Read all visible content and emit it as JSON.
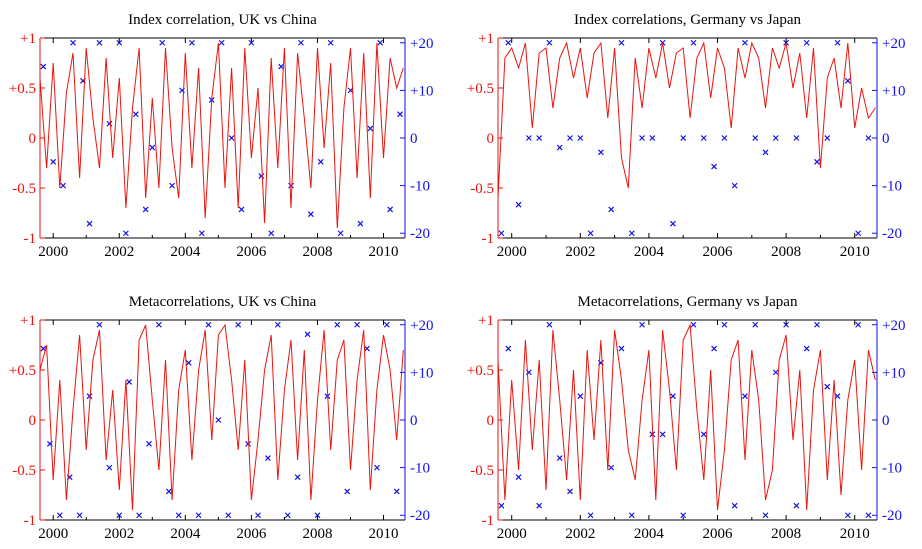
{
  "colors": {
    "corr": "#e8150f",
    "lag": "#1212e6",
    "axis": "#000000"
  },
  "chart_data": [
    {
      "type": "line",
      "title": "Index correlation, UK vs China",
      "x_ticks": [
        "2000",
        "2002",
        "2004",
        "2006",
        "2008",
        "2010"
      ],
      "xlim": [
        1999.6,
        2010.65
      ],
      "left_axis": {
        "ticks": [
          "-1",
          "-0.5",
          "0",
          "+0.5",
          "+1"
        ],
        "ylim": [
          -1,
          1
        ],
        "color": "red"
      },
      "right_axis": {
        "ticks": [
          "-20",
          "-10",
          "0",
          "+10",
          "+20"
        ],
        "ylim": [
          -21,
          21
        ],
        "color": "blue"
      },
      "series": [
        {
          "type": "line",
          "color": "red",
          "x": [
            1999.6,
            1999.8,
            2000.0,
            2000.2,
            2000.4,
            2000.6,
            2000.8,
            2001.0,
            2001.2,
            2001.4,
            2001.6,
            2001.8,
            2002.0,
            2002.2,
            2002.4,
            2002.6,
            2002.8,
            2003.0,
            2003.2,
            2003.4,
            2003.6,
            2003.8,
            2004.0,
            2004.2,
            2004.4,
            2004.6,
            2004.8,
            2005.0,
            2005.2,
            2005.4,
            2005.6,
            2005.8,
            2006.0,
            2006.2,
            2006.4,
            2006.6,
            2006.8,
            2007.0,
            2007.2,
            2007.4,
            2007.6,
            2007.8,
            2008.0,
            2008.2,
            2008.4,
            2008.6,
            2008.8,
            2009.0,
            2009.2,
            2009.4,
            2009.6,
            2009.8,
            2010.0,
            2010.2,
            2010.4,
            2010.6
          ],
          "y": [
            0.6,
            -0.3,
            0.75,
            -0.5,
            0.45,
            0.85,
            -0.4,
            0.9,
            0.2,
            -0.3,
            0.8,
            -0.2,
            0.6,
            -0.7,
            0.3,
            0.9,
            -0.6,
            0.4,
            -0.5,
            0.9,
            -0.1,
            -0.6,
            0.85,
            -0.3,
            0.7,
            -0.8,
            0.4,
            0.95,
            -0.5,
            0.7,
            -0.7,
            0.9,
            -0.2,
            0.5,
            -0.85,
            0.8,
            -0.3,
            0.9,
            -0.7,
            0.85,
            0.2,
            -0.5,
            0.9,
            -0.1,
            0.75,
            -0.9,
            0.3,
            0.9,
            -0.4,
            0.85,
            -0.6,
            0.95,
            -0.2,
            0.8,
            0.5,
            0.7
          ]
        },
        {
          "type": "scatter",
          "color": "blue",
          "marker": "x",
          "x": [
            1999.7,
            2000.0,
            2000.3,
            2000.6,
            2000.9,
            2001.1,
            2001.4,
            2001.7,
            2002.0,
            2002.2,
            2002.5,
            2002.8,
            2003.0,
            2003.3,
            2003.6,
            2003.9,
            2004.2,
            2004.5,
            2004.8,
            2005.1,
            2005.4,
            2005.7,
            2006.0,
            2006.3,
            2006.6,
            2006.9,
            2007.2,
            2007.5,
            2007.8,
            2008.1,
            2008.4,
            2008.7,
            2009.0,
            2009.3,
            2009.6,
            2009.9,
            2010.2,
            2010.5
          ],
          "y": [
            15,
            -5,
            -10,
            20,
            12,
            -18,
            20,
            3,
            20,
            -20,
            5,
            -15,
            -2,
            20,
            -10,
            10,
            20,
            -20,
            8,
            20,
            0,
            -15,
            20,
            -8,
            -20,
            15,
            -10,
            20,
            -16,
            -5,
            20,
            -20,
            10,
            -18,
            2,
            20,
            -15,
            5
          ]
        }
      ]
    },
    {
      "type": "line",
      "title": "Index correlations, Germany vs Japan",
      "x_ticks": [
        "2000",
        "2002",
        "2004",
        "2006",
        "2008",
        "2010"
      ],
      "xlim": [
        1999.6,
        2010.65
      ],
      "left_axis": {
        "ticks": [
          "-1",
          "-0.5",
          "0",
          "+0.5",
          "+1"
        ],
        "ylim": [
          -1,
          1
        ],
        "color": "red"
      },
      "right_axis": {
        "ticks": [
          "-20",
          "-10",
          "0",
          "+10",
          "+20"
        ],
        "ylim": [
          -21,
          21
        ],
        "color": "blue"
      },
      "series": [
        {
          "type": "line",
          "color": "red",
          "x": [
            1999.6,
            1999.8,
            2000.0,
            2000.2,
            2000.4,
            2000.6,
            2000.8,
            2001.0,
            2001.2,
            2001.4,
            2001.6,
            2001.8,
            2002.0,
            2002.2,
            2002.4,
            2002.6,
            2002.8,
            2003.0,
            2003.2,
            2003.4,
            2003.6,
            2003.8,
            2004.0,
            2004.2,
            2004.4,
            2004.6,
            2004.8,
            2005.0,
            2005.2,
            2005.4,
            2005.6,
            2005.8,
            2006.0,
            2006.2,
            2006.4,
            2006.6,
            2006.8,
            2007.0,
            2007.2,
            2007.4,
            2007.6,
            2007.8,
            2008.0,
            2008.2,
            2008.4,
            2008.6,
            2008.8,
            2009.0,
            2009.2,
            2009.4,
            2009.6,
            2009.8,
            2010.0,
            2010.2,
            2010.4,
            2010.6
          ],
          "y": [
            -0.6,
            0.8,
            0.9,
            0.7,
            0.95,
            0.1,
            0.85,
            0.9,
            0.3,
            0.8,
            0.95,
            0.6,
            0.9,
            0.4,
            0.85,
            0.95,
            0.2,
            0.9,
            -0.2,
            -0.5,
            0.8,
            0.3,
            0.9,
            0.6,
            0.95,
            0.5,
            0.85,
            0.9,
            0.2,
            0.8,
            0.95,
            0.4,
            0.9,
            0.7,
            0.1,
            0.9,
            0.6,
            0.95,
            0.8,
            0.3,
            0.9,
            0.7,
            0.95,
            0.5,
            0.85,
            0.2,
            0.9,
            -0.3,
            0.6,
            0.8,
            0.3,
            0.95,
            0.1,
            0.5,
            0.2,
            0.3
          ]
        },
        {
          "type": "scatter",
          "color": "blue",
          "marker": "x",
          "x": [
            1999.7,
            1999.9,
            2000.2,
            2000.5,
            2000.8,
            2001.1,
            2001.4,
            2001.7,
            2002.0,
            2002.3,
            2002.6,
            2002.9,
            2003.2,
            2003.5,
            2003.8,
            2004.1,
            2004.4,
            2004.7,
            2005.0,
            2005.3,
            2005.6,
            2005.9,
            2006.2,
            2006.5,
            2006.8,
            2007.1,
            2007.4,
            2007.7,
            2008.0,
            2008.3,
            2008.6,
            2008.9,
            2009.2,
            2009.5,
            2009.8,
            2010.1,
            2010.4
          ],
          "y": [
            -20,
            20,
            -14,
            0,
            0,
            20,
            -2,
            0,
            0,
            -20,
            -3,
            -15,
            20,
            -20,
            0,
            0,
            20,
            -18,
            0,
            20,
            0,
            -6,
            0,
            -10,
            20,
            0,
            -3,
            0,
            20,
            0,
            20,
            -5,
            0,
            20,
            12,
            -20,
            0
          ]
        }
      ]
    },
    {
      "type": "line",
      "title": "Metacorrelations, UK vs China",
      "x_ticks": [
        "2000",
        "2002",
        "2004",
        "2006",
        "2008",
        "2010"
      ],
      "xlim": [
        1999.6,
        2010.65
      ],
      "left_axis": {
        "ticks": [
          "-1",
          "-0.5",
          "0",
          "+0.5",
          "+1"
        ],
        "ylim": [
          -1,
          1
        ],
        "color": "red"
      },
      "right_axis": {
        "ticks": [
          "-20",
          "-10",
          "0",
          "+10",
          "+20"
        ],
        "ylim": [
          -21,
          21
        ],
        "color": "blue"
      },
      "series": [
        {
          "type": "line",
          "color": "red",
          "x": [
            1999.6,
            1999.8,
            2000.0,
            2000.2,
            2000.4,
            2000.6,
            2000.8,
            2001.0,
            2001.2,
            2001.4,
            2001.6,
            2001.8,
            2002.0,
            2002.2,
            2002.4,
            2002.6,
            2002.8,
            2003.0,
            2003.2,
            2003.4,
            2003.6,
            2003.8,
            2004.0,
            2004.2,
            2004.4,
            2004.6,
            2004.8,
            2005.0,
            2005.2,
            2005.4,
            2005.6,
            2005.8,
            2006.0,
            2006.2,
            2006.4,
            2006.6,
            2006.8,
            2007.0,
            2007.2,
            2007.4,
            2007.6,
            2007.8,
            2008.0,
            2008.2,
            2008.4,
            2008.6,
            2008.8,
            2009.0,
            2009.2,
            2009.4,
            2009.6,
            2009.8,
            2010.0,
            2010.2,
            2010.4,
            2010.6
          ],
          "y": [
            0.5,
            0.75,
            -0.6,
            0.4,
            -0.8,
            0.1,
            0.85,
            -0.3,
            0.6,
            0.9,
            -0.4,
            0.3,
            -0.7,
            0.4,
            -0.9,
            0.8,
            0.95,
            0.2,
            -0.5,
            0.6,
            -0.8,
            0.3,
            0.7,
            -0.4,
            0.5,
            0.9,
            -0.2,
            0.85,
            0.95,
            0.4,
            -0.3,
            0.6,
            -0.8,
            -0.2,
            0.5,
            0.85,
            -0.6,
            0.3,
            0.8,
            -0.4,
            0.7,
            -0.8,
            0.2,
            0.9,
            -0.3,
            0.6,
            0.8,
            -0.5,
            0.4,
            0.9,
            -0.7,
            0.3,
            0.85,
            0.5,
            -0.2,
            0.7
          ]
        },
        {
          "type": "scatter",
          "color": "blue",
          "marker": "x",
          "x": [
            1999.7,
            1999.9,
            2000.2,
            2000.5,
            2000.8,
            2001.1,
            2001.4,
            2001.7,
            2002.0,
            2002.3,
            2002.6,
            2002.9,
            2003.2,
            2003.5,
            2003.8,
            2004.1,
            2004.4,
            2004.7,
            2005.0,
            2005.3,
            2005.6,
            2005.9,
            2006.2,
            2006.5,
            2006.8,
            2007.1,
            2007.4,
            2007.7,
            2008.0,
            2008.3,
            2008.6,
            2008.9,
            2009.2,
            2009.5,
            2009.8,
            2010.1,
            2010.4
          ],
          "y": [
            15,
            -5,
            -20,
            -12,
            -20,
            5,
            20,
            -10,
            -20,
            8,
            -20,
            -5,
            20,
            -15,
            -20,
            12,
            -20,
            20,
            0,
            -20,
            20,
            -5,
            -20,
            -8,
            20,
            -20,
            -12,
            18,
            -20,
            5,
            20,
            -15,
            20,
            15,
            -10,
            20,
            -15
          ]
        }
      ]
    },
    {
      "type": "line",
      "title": "Metacorrelations, Germany vs Japan",
      "x_ticks": [
        "2000",
        "2002",
        "2004",
        "2006",
        "2008",
        "2010"
      ],
      "xlim": [
        1999.6,
        2010.65
      ],
      "left_axis": {
        "ticks": [
          "-1",
          "-0.5",
          "0",
          "+0.5",
          "+1"
        ],
        "ylim": [
          -1,
          1
        ],
        "color": "red"
      },
      "right_axis": {
        "ticks": [
          "-20",
          "-10",
          "0",
          "+10",
          "+20"
        ],
        "ylim": [
          -21,
          21
        ],
        "color": "blue"
      },
      "series": [
        {
          "type": "line",
          "color": "red",
          "x": [
            1999.6,
            1999.8,
            2000.0,
            2000.2,
            2000.4,
            2000.6,
            2000.8,
            2001.0,
            2001.2,
            2001.4,
            2001.6,
            2001.8,
            2002.0,
            2002.2,
            2002.4,
            2002.6,
            2002.8,
            2003.0,
            2003.2,
            2003.4,
            2003.6,
            2003.8,
            2004.0,
            2004.2,
            2004.4,
            2004.6,
            2004.8,
            2005.0,
            2005.2,
            2005.4,
            2005.6,
            2005.8,
            2006.0,
            2006.2,
            2006.4,
            2006.6,
            2006.8,
            2007.0,
            2007.2,
            2007.4,
            2007.6,
            2007.8,
            2008.0,
            2008.2,
            2008.4,
            2008.6,
            2008.8,
            2009.0,
            2009.2,
            2009.4,
            2009.6,
            2009.8,
            2010.0,
            2010.2,
            2010.4,
            2010.6
          ],
          "y": [
            0.6,
            -0.8,
            0.4,
            -0.5,
            0.8,
            -0.3,
            0.6,
            -0.7,
            0.9,
            0.2,
            -0.6,
            0.5,
            -0.8,
            0.7,
            -0.2,
            0.8,
            -0.5,
            0.9,
            0.4,
            -0.3,
            -0.6,
            0.2,
            0.7,
            -0.8,
            0.9,
            0.3,
            -0.5,
            0.8,
            0.95,
            0.1,
            -0.6,
            0.5,
            -0.9,
            -0.3,
            0.6,
            0.8,
            -0.4,
            0.7,
            0.2,
            -0.8,
            -0.5,
            0.6,
            0.85,
            -0.2,
            0.5,
            -0.9,
            0.3,
            0.7,
            -0.6,
            0.4,
            -0.75,
            0.2,
            0.6,
            -0.5,
            0.7,
            0.4
          ]
        },
        {
          "type": "scatter",
          "color": "blue",
          "marker": "x",
          "x": [
            1999.7,
            1999.9,
            2000.2,
            2000.5,
            2000.8,
            2001.1,
            2001.4,
            2001.7,
            2002.0,
            2002.3,
            2002.6,
            2002.9,
            2003.2,
            2003.5,
            2003.8,
            2004.1,
            2004.4,
            2004.7,
            2005.0,
            2005.3,
            2005.6,
            2005.9,
            2006.2,
            2006.5,
            2006.8,
            2007.1,
            2007.4,
            2007.7,
            2008.0,
            2008.3,
            2008.6,
            2008.9,
            2009.2,
            2009.5,
            2009.8,
            2010.1,
            2010.4
          ],
          "y": [
            -18,
            15,
            -12,
            10,
            -18,
            20,
            -8,
            -15,
            5,
            -20,
            12,
            -10,
            15,
            -20,
            20,
            -3,
            -3,
            5,
            -20,
            20,
            -3,
            15,
            20,
            -18,
            5,
            20,
            -20,
            10,
            20,
            -18,
            15,
            20,
            7,
            5,
            -20,
            20,
            -20
          ]
        }
      ]
    }
  ]
}
